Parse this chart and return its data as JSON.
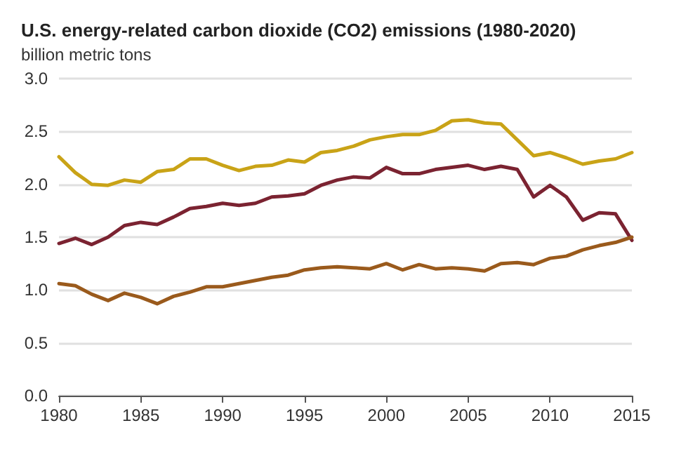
{
  "chart_data": {
    "type": "line",
    "title": "U.S. energy-related carbon dioxide (CO2) emissions (1980-2020)",
    "ylabel": "billion metric tons",
    "x": [
      1980,
      1981,
      1982,
      1983,
      1984,
      1985,
      1986,
      1987,
      1988,
      1989,
      1990,
      1991,
      1992,
      1993,
      1994,
      1995,
      1996,
      1997,
      1998,
      1999,
      2000,
      2001,
      2002,
      2003,
      2004,
      2005,
      2006,
      2007,
      2008,
      2009,
      2010,
      2011,
      2012,
      2013,
      2014,
      2015
    ],
    "series": [
      {
        "color": "#c9a317",
        "values": [
          2.26,
          2.11,
          2.0,
          1.99,
          2.04,
          2.02,
          2.12,
          2.14,
          2.24,
          2.24,
          2.18,
          2.13,
          2.17,
          2.18,
          2.23,
          2.21,
          2.3,
          2.32,
          2.36,
          2.42,
          2.45,
          2.47,
          2.47,
          2.51,
          2.6,
          2.61,
          2.58,
          2.57,
          2.42,
          2.27,
          2.3,
          2.25,
          2.19,
          2.22,
          2.24,
          2.3
        ]
      },
      {
        "color": "#7b2331",
        "values": [
          1.44,
          1.49,
          1.43,
          1.5,
          1.61,
          1.64,
          1.62,
          1.69,
          1.77,
          1.79,
          1.82,
          1.8,
          1.82,
          1.88,
          1.89,
          1.91,
          1.99,
          2.04,
          2.07,
          2.06,
          2.16,
          2.1,
          2.1,
          2.14,
          2.16,
          2.18,
          2.14,
          2.17,
          2.14,
          1.88,
          1.99,
          1.88,
          1.66,
          1.73,
          1.72,
          1.47
        ]
      },
      {
        "color": "#9a5a1c",
        "values": [
          1.06,
          1.04,
          0.96,
          0.9,
          0.97,
          0.93,
          0.87,
          0.94,
          0.98,
          1.03,
          1.03,
          1.06,
          1.09,
          1.12,
          1.14,
          1.19,
          1.21,
          1.22,
          1.21,
          1.2,
          1.25,
          1.19,
          1.24,
          1.2,
          1.21,
          1.2,
          1.18,
          1.25,
          1.26,
          1.24,
          1.3,
          1.32,
          1.38,
          1.42,
          1.45,
          1.5
        ]
      }
    ],
    "xlim": [
      1980,
      2015
    ],
    "xticks": [
      1980,
      1985,
      1990,
      1995,
      2000,
      2005,
      2010,
      2015
    ],
    "ylim": [
      0,
      3
    ],
    "yticks": [
      {
        "value": 0,
        "label": "0.0"
      },
      {
        "value": 0.5,
        "label": "0.5"
      },
      {
        "value": 1,
        "label": "1.0"
      },
      {
        "value": 1.5,
        "label": "1.5"
      },
      {
        "value": 2,
        "label": "2.0"
      },
      {
        "value": 2.5,
        "label": "2.5"
      },
      {
        "value": 3,
        "label": "3.0"
      }
    ],
    "grid": "y",
    "marker": "none",
    "line_style": "solid"
  }
}
